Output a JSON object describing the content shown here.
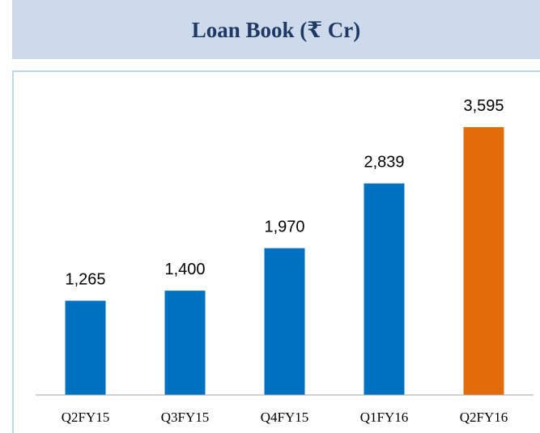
{
  "chart_data": {
    "type": "bar",
    "title": "Loan Book (₹ Cr)",
    "categories": [
      "Q2FY15",
      "Q3FY15",
      "Q4FY15",
      "Q1FY16",
      "Q2FY16"
    ],
    "values": [
      1265,
      1400,
      1970,
      2839,
      3595
    ],
    "value_labels": [
      "1,265",
      "1,400",
      "1,970",
      "2,839",
      "3,595"
    ],
    "colors": [
      "#0070C0",
      "#0070C0",
      "#0070C0",
      "#0070C0",
      "#E36C0A"
    ],
    "ylim": [
      0,
      3900
    ]
  }
}
